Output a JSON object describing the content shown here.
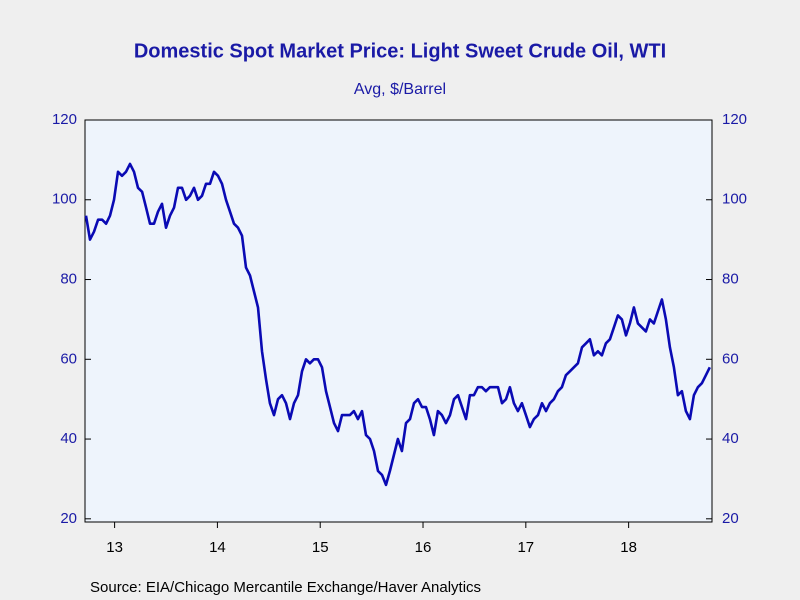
{
  "chart_data": {
    "type": "line",
    "title": "Domestic Spot Market Price: Light Sweet Crude Oil, WTI",
    "subtitle": "Avg, $/Barrel",
    "source": "Source:  EIA/Chicago Mercantile Exchange/Haver Analytics",
    "x": [
      2013.222,
      2013.261,
      2013.3,
      2013.339,
      2013.378,
      2013.417,
      2013.455,
      2013.494,
      2013.533,
      2013.572,
      2013.611,
      2013.65,
      2013.689,
      2013.728,
      2013.767,
      2013.806,
      2013.844,
      2013.883,
      2013.922,
      2013.961,
      2014.0,
      2014.039,
      2014.078,
      2014.117,
      2014.156,
      2014.195,
      2014.233,
      2014.272,
      2014.311,
      2014.35,
      2014.389,
      2014.428,
      2014.467,
      2014.506,
      2014.545,
      2014.584,
      2014.622,
      2014.661,
      2014.7,
      2014.739,
      2014.778,
      2014.817,
      2014.856,
      2014.895,
      2014.934,
      2014.973,
      2015.011,
      2015.05,
      2015.089,
      2015.128,
      2015.167,
      2015.206,
      2015.245,
      2015.284,
      2015.323,
      2015.362,
      2015.4,
      2015.439,
      2015.478,
      2015.517,
      2015.556,
      2015.595,
      2015.634,
      2015.673,
      2015.712,
      2015.751,
      2015.789,
      2015.828,
      2015.867,
      2015.906,
      2015.945,
      2015.984,
      2016.023,
      2016.062,
      2016.101,
      2016.14,
      2016.178,
      2016.217,
      2016.256,
      2016.295,
      2016.334,
      2016.373,
      2016.412,
      2016.451,
      2016.49,
      2016.529,
      2016.567,
      2016.606,
      2016.645,
      2016.684,
      2016.723,
      2016.762,
      2016.801,
      2016.84,
      2016.879,
      2016.918,
      2016.956,
      2016.995,
      2017.034,
      2017.073,
      2017.112,
      2017.151,
      2017.19,
      2017.229,
      2017.268,
      2017.307,
      2017.345,
      2017.384,
      2017.423,
      2017.462,
      2017.501,
      2017.54,
      2017.579,
      2017.618,
      2017.657,
      2017.696,
      2017.734,
      2017.773,
      2017.812,
      2017.851,
      2017.89,
      2017.929,
      2017.968,
      2018.007,
      2018.046,
      2018.085,
      2018.123,
      2018.162,
      2018.201,
      2018.24,
      2018.279,
      2018.318,
      2018.357,
      2018.396,
      2018.435,
      2018.474,
      2018.512,
      2018.551,
      2018.59,
      2018.629,
      2018.668,
      2018.707,
      2018.746,
      2018.785,
      2018.824,
      2018.863,
      2018.901,
      2018.94,
      2018.979,
      2019.018,
      2019.057,
      2019.096,
      2019.135,
      2019.174,
      2019.213,
      2019.252,
      2019.29
    ],
    "series": [
      {
        "color": "#0a0ab4",
        "values": [
          96,
          90,
          92,
          95,
          95,
          94,
          96,
          100,
          107,
          106,
          107,
          109,
          107,
          103,
          102,
          98,
          94,
          94,
          97,
          99,
          93,
          96,
          98,
          103,
          103,
          100,
          101,
          103,
          100,
          101,
          104,
          104,
          107,
          106,
          104,
          100,
          97,
          94,
          93,
          91,
          83,
          81,
          77,
          73,
          62,
          55,
          49,
          46,
          50,
          51,
          49,
          45,
          49,
          51,
          57,
          60,
          59,
          60,
          60,
          58,
          52,
          48,
          44,
          42,
          46,
          46,
          46,
          47,
          45,
          47,
          41,
          40,
          37,
          32,
          31,
          28.5,
          32,
          36,
          40,
          37,
          44,
          45,
          49,
          50,
          48,
          48,
          45,
          41,
          47,
          46,
          44,
          46,
          50,
          51,
          48,
          45,
          51,
          51,
          53,
          53,
          52,
          53,
          53,
          53,
          49,
          50,
          53,
          49,
          47,
          49,
          46,
          43,
          45,
          46,
          49,
          47,
          49,
          50,
          52,
          53,
          56,
          57,
          58,
          59,
          63,
          64,
          65,
          61,
          62,
          61,
          64,
          65,
          68,
          71,
          70,
          66,
          69,
          73,
          69,
          68,
          67,
          70,
          69,
          72,
          75,
          70,
          63,
          58,
          51,
          52,
          47,
          45,
          51,
          53,
          54,
          56,
          58
        ]
      }
    ],
    "xlim": [
      2013.212,
      2019.311
    ],
    "xticks": [
      {
        "value": 2013.5,
        "label": "13"
      },
      {
        "value": 2014.5,
        "label": "14"
      },
      {
        "value": 2015.5,
        "label": "15"
      },
      {
        "value": 2016.5,
        "label": "16"
      },
      {
        "value": 2017.5,
        "label": "17"
      },
      {
        "value": 2018.5,
        "label": "18"
      }
    ],
    "ylim": [
      19.2,
      120
    ],
    "yticks": [
      20,
      40,
      60,
      80,
      100,
      120
    ]
  }
}
